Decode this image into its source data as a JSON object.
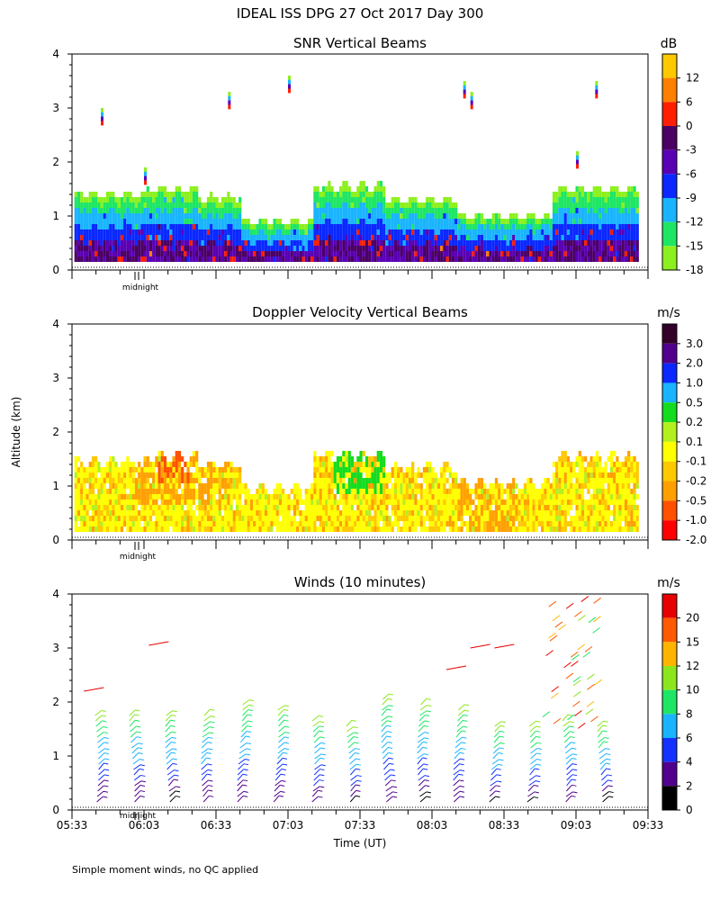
{
  "title": "IDEAL ISS DPG  27 Oct 2017 Day 300",
  "ylabel": "Altitude (km)",
  "xlabel": "Time (UT)",
  "footnote": "Simple moment winds, no QC applied",
  "midnight_label": "midnight",
  "chart_data": [
    {
      "type": "heatmap",
      "title": "SNR Vertical Beams",
      "units": "dB",
      "ylim": [
        0,
        4
      ],
      "yticks": [
        "0",
        "1",
        "2",
        "3",
        "4"
      ],
      "xlim": [
        0,
        240
      ],
      "colorbar_labels": [
        "12",
        "6",
        "0",
        "-3",
        "-6",
        "-9",
        "-12",
        "-15",
        "-18"
      ],
      "colorbar_colors": [
        "#ffc800",
        "#ff7f00",
        "#ff1e00",
        "#4b0064",
        "#5a00b4",
        "#0a28ff",
        "#19b4ff",
        "#1ee664",
        "#8cf01e"
      ]
    },
    {
      "type": "heatmap",
      "title": "Doppler Velocity Vertical Beams",
      "units": "m/s",
      "ylim": [
        0,
        4
      ],
      "yticks": [
        "0",
        "1",
        "2",
        "3",
        "4"
      ],
      "xlim": [
        0,
        240
      ],
      "colorbar_labels": [
        "3.0",
        "2.0",
        "1.0",
        "0.5",
        "0.2",
        "0.1",
        "-0.1",
        "-0.2",
        "-0.5",
        "-1.0",
        "-2.0"
      ],
      "colorbar_colors": [
        "#320028",
        "#50008c",
        "#0a28ff",
        "#19b4ff",
        "#14dc1e",
        "#b4f01e",
        "#ffff00",
        "#ffc800",
        "#ffa000",
        "#ff5000",
        "#ff0000"
      ]
    },
    {
      "type": "scatter",
      "title": "Winds (10 minutes)",
      "units": "m/s",
      "ylim": [
        0,
        4
      ],
      "yticks": [
        "0",
        "1",
        "2",
        "3",
        "4"
      ],
      "xlim": [
        0,
        240
      ],
      "xticks": [
        "05:33",
        "06:03",
        "06:33",
        "07:03",
        "07:33",
        "08:03",
        "08:33",
        "09:03",
        "09:33"
      ],
      "colorbar_labels": [
        "20",
        "15",
        "12",
        "10",
        "8",
        "6",
        "4",
        "2",
        "0"
      ],
      "colorbar_colors": [
        "#e60000",
        "#ff5a00",
        "#ffb400",
        "#8ce61e",
        "#1ee664",
        "#19b4ff",
        "#1432ff",
        "#50008c",
        "#000000"
      ],
      "profile_times_min": [
        10,
        25,
        40,
        55,
        70,
        85,
        100,
        115,
        130,
        145,
        160,
        175,
        190,
        205,
        220
      ],
      "profile_tops_km": [
        1.8,
        1.8,
        1.8,
        1.8,
        2.0,
        1.9,
        1.7,
        1.6,
        2.1,
        2.0,
        1.9,
        1.6,
        1.6,
        1.7,
        1.6
      ]
    }
  ]
}
